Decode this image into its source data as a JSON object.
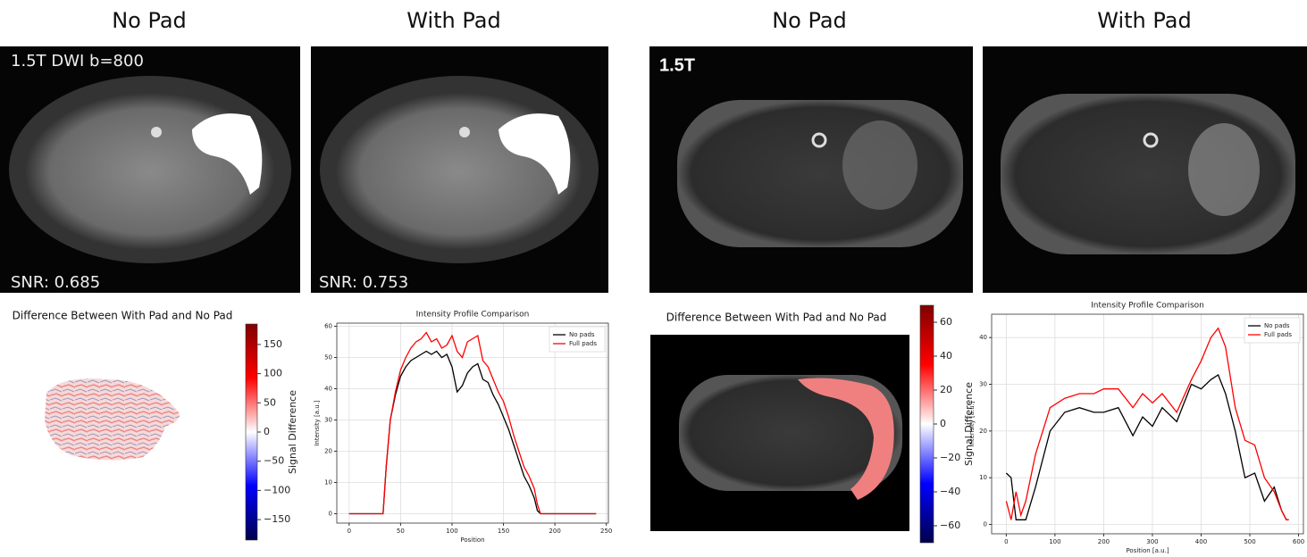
{
  "images": [
    {
      "header": "No Pad",
      "labels": [
        "1.5T DWI b=800",
        "SNR: 0.685"
      ]
    },
    {
      "header": "With Pad",
      "labels": [
        "SNR: 0.753"
      ]
    },
    {
      "header": "No Pad",
      "labels": [
        "1.5T"
      ]
    },
    {
      "header": "With Pad",
      "labels": []
    }
  ],
  "chart_data": [
    {
      "type": "colorbar",
      "title": "Difference Between With Pad and No Pad",
      "label": "Signal Difference",
      "ylim": [
        -185,
        185
      ],
      "yticks": [
        150,
        100,
        50,
        0,
        {
          "value": -50,
          "label": "−50"
        },
        {
          "value": -100,
          "label": "−100"
        },
        {
          "value": -150,
          "label": "−150"
        }
      ],
      "colors": [
        "#00004c",
        "#0000ff",
        "#ffffff",
        "#ff0000",
        "#800000"
      ]
    },
    {
      "type": "line",
      "title": "Intensity Profile Comparison",
      "xlabel": "Position",
      "ylabel": "Intensity [a.u.]",
      "xlim": [
        -12,
        252
      ],
      "ylim": [
        -3,
        61
      ],
      "xticks": [
        0,
        50,
        100,
        150,
        200,
        250
      ],
      "yticks": [
        0,
        10,
        20,
        30,
        40,
        50,
        60
      ],
      "grid": true,
      "legend": "upper right",
      "x": [
        0,
        30,
        33,
        36,
        40,
        45,
        50,
        55,
        60,
        65,
        70,
        75,
        80,
        85,
        90,
        95,
        100,
        105,
        110,
        115,
        120,
        125,
        130,
        135,
        140,
        145,
        150,
        155,
        160,
        165,
        170,
        175,
        180,
        183,
        186,
        200,
        240
      ],
      "series": [
        {
          "name": "No pads",
          "color": "#000000",
          "values": [
            0,
            0,
            0,
            15,
            30,
            38,
            44,
            47,
            49,
            50,
            51,
            52,
            51,
            52,
            50,
            51,
            47,
            39,
            41,
            45,
            47,
            48,
            43,
            42,
            38,
            35,
            31,
            27,
            22,
            17,
            12,
            9,
            5,
            1,
            0,
            0,
            0
          ]
        },
        {
          "name": "Full pads",
          "color": "#ff0000",
          "values": [
            0,
            0,
            0,
            15,
            30,
            39,
            46,
            50,
            53,
            55,
            56,
            58,
            55,
            56,
            53,
            54,
            57,
            52,
            50,
            55,
            56,
            57,
            49,
            47,
            43,
            39,
            36,
            31,
            25,
            20,
            15,
            12,
            8,
            3,
            0,
            0,
            0
          ]
        }
      ]
    },
    {
      "type": "colorbar",
      "title": "Difference Between With Pad and No Pad",
      "label": "Signal Difference",
      "ylim": [
        -70,
        70
      ],
      "yticks": [
        60,
        40,
        20,
        0,
        {
          "value": -20,
          "label": "−20"
        },
        {
          "value": -40,
          "label": "−40"
        },
        {
          "value": -60,
          "label": "−60"
        }
      ],
      "colors": [
        "#00004c",
        "#0000ff",
        "#ffffff",
        "#ff0000",
        "#800000"
      ]
    },
    {
      "type": "line",
      "title": "Intensity Profile Comparison",
      "xlabel": "Position [a.u.]",
      "ylabel": "Intensity [a.u.]",
      "xlim": [
        -30,
        610
      ],
      "ylim": [
        -2,
        45
      ],
      "xticks": [
        0,
        100,
        200,
        300,
        400,
        500,
        600
      ],
      "yticks": [
        0,
        10,
        20,
        30,
        40
      ],
      "grid": true,
      "legend": "upper right",
      "x": [
        0,
        10,
        20,
        30,
        40,
        60,
        90,
        120,
        150,
        180,
        200,
        230,
        260,
        280,
        300,
        320,
        350,
        380,
        400,
        420,
        435,
        450,
        470,
        490,
        510,
        530,
        550,
        565,
        575,
        580
      ],
      "series": [
        {
          "name": "No pads",
          "color": "#000000",
          "values": [
            11,
            10,
            1,
            1,
            1,
            8,
            20,
            24,
            25,
            24,
            24,
            25,
            19,
            23,
            21,
            25,
            22,
            30,
            29,
            31,
            32,
            28,
            20,
            10,
            11,
            5,
            8,
            3,
            1,
            1
          ]
        },
        {
          "name": "Full pads",
          "color": "#ff0000",
          "values": [
            5,
            1,
            7,
            2,
            5,
            15,
            25,
            27,
            28,
            28,
            29,
            29,
            25,
            28,
            26,
            28,
            24,
            31,
            35,
            40,
            42,
            38,
            25,
            18,
            17,
            10,
            7,
            3,
            1,
            1
          ]
        }
      ]
    }
  ]
}
